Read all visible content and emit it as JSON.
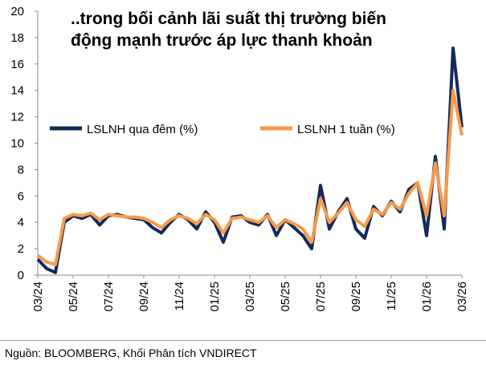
{
  "chart_data": {
    "type": "line",
    "title": "..trong bối cảnh lãi suất thị trường biến động mạnh trước áp lực thanh khoản",
    "source": "Nguồn: BLOOMBERG, Khối Phân tích VNDIRECT",
    "categories": [
      "03/24",
      null,
      null,
      null,
      "05/24",
      null,
      null,
      null,
      "07/24",
      null,
      null,
      null,
      "09/24",
      null,
      null,
      null,
      "11/24",
      null,
      null,
      null,
      "01/25",
      null,
      null,
      null,
      "03/25",
      null,
      null,
      null,
      "05/25",
      null,
      null,
      null,
      "07/25",
      null,
      null,
      null,
      "09/25",
      null,
      null,
      null,
      "11/25",
      null,
      null,
      null,
      "01/26",
      null,
      null,
      null,
      "03/26"
    ],
    "series": [
      {
        "name": "LSLNH qua đêm (%)",
        "color": "#13295a",
        "values": [
          1.2,
          0.5,
          0.2,
          4.0,
          4.5,
          4.3,
          4.6,
          3.8,
          4.5,
          4.6,
          4.4,
          4.3,
          4.2,
          3.6,
          3.2,
          4.0,
          4.6,
          4.2,
          3.5,
          4.8,
          4.0,
          2.5,
          4.4,
          4.5,
          4.0,
          3.8,
          4.6,
          3.0,
          4.2,
          3.6,
          3.0,
          2.0,
          6.8,
          3.5,
          4.8,
          5.8,
          3.5,
          2.8,
          5.2,
          4.5,
          5.6,
          4.8,
          6.5,
          7.0,
          3.0,
          9.0,
          3.5,
          17.2,
          11.2
        ]
      },
      {
        "name": "LSLNH 1 tuần (%)",
        "color": "#f79a4a",
        "values": [
          1.5,
          1.0,
          0.8,
          4.3,
          4.6,
          4.5,
          4.7,
          4.2,
          4.6,
          4.5,
          4.4,
          4.4,
          4.3,
          4.0,
          3.6,
          4.2,
          4.5,
          4.3,
          3.9,
          4.6,
          4.2,
          3.2,
          4.3,
          4.4,
          4.2,
          4.0,
          4.5,
          3.6,
          4.2,
          3.9,
          3.5,
          2.5,
          5.8,
          4.0,
          4.7,
          5.5,
          4.2,
          3.7,
          5.0,
          4.6,
          5.5,
          5.0,
          6.2,
          7.0,
          4.5,
          8.5,
          4.5,
          14.0,
          10.6
        ]
      }
    ],
    "ylim": [
      0,
      20
    ],
    "yticks": [
      0,
      2,
      4,
      6,
      8,
      10,
      12,
      14,
      16,
      18,
      20
    ]
  }
}
